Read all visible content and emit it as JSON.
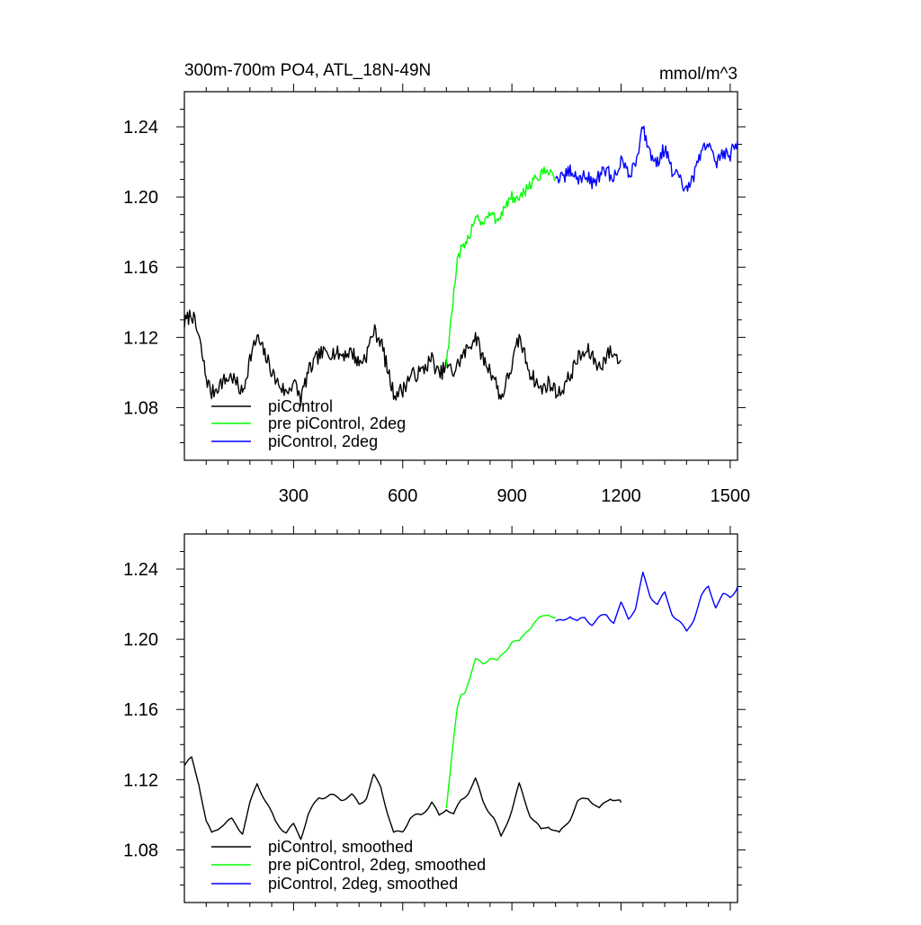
{
  "chart_data": [
    {
      "type": "line",
      "title": "300m-700m PO4, ATL_18N-49N",
      "units": "mmol/m^3",
      "xlim": [
        0,
        1520
      ],
      "ylim": [
        1.05,
        1.26
      ],
      "x_ticks": [
        300,
        600,
        900,
        1200,
        1500
      ],
      "y_ticks": [
        1.08,
        1.12,
        1.16,
        1.2,
        1.24
      ],
      "x_tick_labels_shown": true,
      "grid": false,
      "legend_position": "bottom-left",
      "series": [
        {
          "name": "piControl",
          "color": "#000000",
          "noise": 0.0045,
          "x": [
            0,
            20,
            40,
            60,
            75,
            100,
            130,
            160,
            180,
            200,
            230,
            250,
            280,
            300,
            320,
            340,
            370,
            400,
            430,
            460,
            480,
            500,
            520,
            540,
            560,
            575,
            600,
            620,
            650,
            680,
            700,
            720,
            740,
            760,
            780,
            800,
            820,
            850,
            870,
            900,
            920,
            950,
            980,
            1000,
            1030,
            1060,
            1080,
            1110,
            1140,
            1170,
            1200
          ],
          "y": [
            1.128,
            1.134,
            1.12,
            1.097,
            1.088,
            1.094,
            1.098,
            1.088,
            1.108,
            1.12,
            1.106,
            1.096,
            1.088,
            1.095,
            1.085,
            1.1,
            1.11,
            1.112,
            1.11,
            1.112,
            1.105,
            1.11,
            1.124,
            1.118,
            1.1,
            1.088,
            1.09,
            1.098,
            1.1,
            1.108,
            1.098,
            1.104,
            1.1,
            1.108,
            1.114,
            1.121,
            1.108,
            1.098,
            1.085,
            1.104,
            1.12,
            1.1,
            1.09,
            1.094,
            1.088,
            1.098,
            1.108,
            1.112,
            1.103,
            1.112,
            1.107
          ]
        },
        {
          "name": "pre piControl, 2deg",
          "color": "#00ff00",
          "noise": 0.0035,
          "x": [
            720,
            735,
            750,
            760,
            770,
            790,
            800,
            820,
            840,
            860,
            880,
            900,
            920,
            940,
            960,
            980,
            1000,
            1020
          ],
          "y": [
            1.105,
            1.135,
            1.162,
            1.17,
            1.17,
            1.183,
            1.19,
            1.185,
            1.19,
            1.187,
            1.194,
            1.2,
            1.197,
            1.205,
            1.21,
            1.212,
            1.216,
            1.21
          ]
        },
        {
          "name": "piControl, 2deg",
          "color": "#0000ff",
          "noise": 0.004,
          "x": [
            1020,
            1040,
            1060,
            1080,
            1100,
            1120,
            1140,
            1160,
            1180,
            1200,
            1220,
            1240,
            1260,
            1280,
            1300,
            1320,
            1340,
            1360,
            1380,
            1400,
            1420,
            1440,
            1460,
            1480,
            1500,
            1520
          ],
          "y": [
            1.212,
            1.21,
            1.215,
            1.21,
            1.213,
            1.208,
            1.212,
            1.215,
            1.21,
            1.222,
            1.212,
            1.22,
            1.24,
            1.225,
            1.22,
            1.228,
            1.215,
            1.21,
            1.203,
            1.212,
            1.225,
            1.232,
            1.218,
            1.226,
            1.224,
            1.232
          ]
        }
      ]
    },
    {
      "type": "line",
      "title": "",
      "units": "",
      "xlim": [
        0,
        1520
      ],
      "ylim": [
        1.05,
        1.26
      ],
      "x_ticks": [
        300,
        600,
        900,
        1200,
        1500
      ],
      "y_ticks": [
        1.08,
        1.12,
        1.16,
        1.2,
        1.24
      ],
      "x_tick_labels_shown": false,
      "grid": false,
      "legend_position": "bottom-left",
      "series": [
        {
          "name": "piControl, smoothed",
          "color": "#000000",
          "noise": 0.0,
          "x": [
            0,
            20,
            40,
            60,
            75,
            100,
            130,
            160,
            180,
            200,
            230,
            250,
            280,
            300,
            320,
            340,
            370,
            400,
            430,
            460,
            480,
            500,
            520,
            540,
            560,
            575,
            600,
            620,
            650,
            680,
            700,
            720,
            740,
            760,
            780,
            800,
            820,
            850,
            870,
            900,
            920,
            950,
            980,
            1000,
            1030,
            1060,
            1080,
            1110,
            1140,
            1170,
            1200
          ],
          "y": [
            1.128,
            1.132,
            1.118,
            1.096,
            1.089,
            1.094,
            1.097,
            1.09,
            1.106,
            1.118,
            1.105,
            1.096,
            1.09,
            1.094,
            1.087,
            1.1,
            1.11,
            1.111,
            1.109,
            1.111,
            1.106,
            1.11,
            1.122,
            1.116,
            1.1,
            1.089,
            1.091,
            1.098,
            1.1,
            1.107,
            1.099,
            1.104,
            1.1,
            1.108,
            1.113,
            1.12,
            1.108,
            1.098,
            1.087,
            1.103,
            1.117,
            1.1,
            1.091,
            1.094,
            1.089,
            1.098,
            1.107,
            1.11,
            1.103,
            1.11,
            1.107
          ]
        },
        {
          "name": "pre piControl, 2deg, smoothed",
          "color": "#00ff00",
          "noise": 0.0,
          "x": [
            720,
            735,
            750,
            760,
            770,
            790,
            800,
            820,
            840,
            860,
            880,
            900,
            920,
            940,
            960,
            980,
            1000,
            1020
          ],
          "y": [
            1.105,
            1.134,
            1.16,
            1.168,
            1.17,
            1.182,
            1.188,
            1.186,
            1.19,
            1.187,
            1.193,
            1.199,
            1.198,
            1.205,
            1.209,
            1.212,
            1.215,
            1.212
          ]
        },
        {
          "name": "piControl, 2deg, smoothed",
          "color": "#0000ff",
          "noise": 0.0,
          "x": [
            1020,
            1040,
            1060,
            1080,
            1100,
            1120,
            1140,
            1160,
            1180,
            1200,
            1220,
            1240,
            1260,
            1280,
            1300,
            1320,
            1340,
            1360,
            1380,
            1400,
            1420,
            1440,
            1460,
            1480,
            1500,
            1520
          ],
          "y": [
            1.21,
            1.21,
            1.214,
            1.21,
            1.212,
            1.209,
            1.212,
            1.214,
            1.21,
            1.22,
            1.212,
            1.218,
            1.237,
            1.225,
            1.22,
            1.226,
            1.215,
            1.21,
            1.204,
            1.212,
            1.224,
            1.23,
            1.219,
            1.225,
            1.224,
            1.23
          ]
        }
      ]
    }
  ]
}
